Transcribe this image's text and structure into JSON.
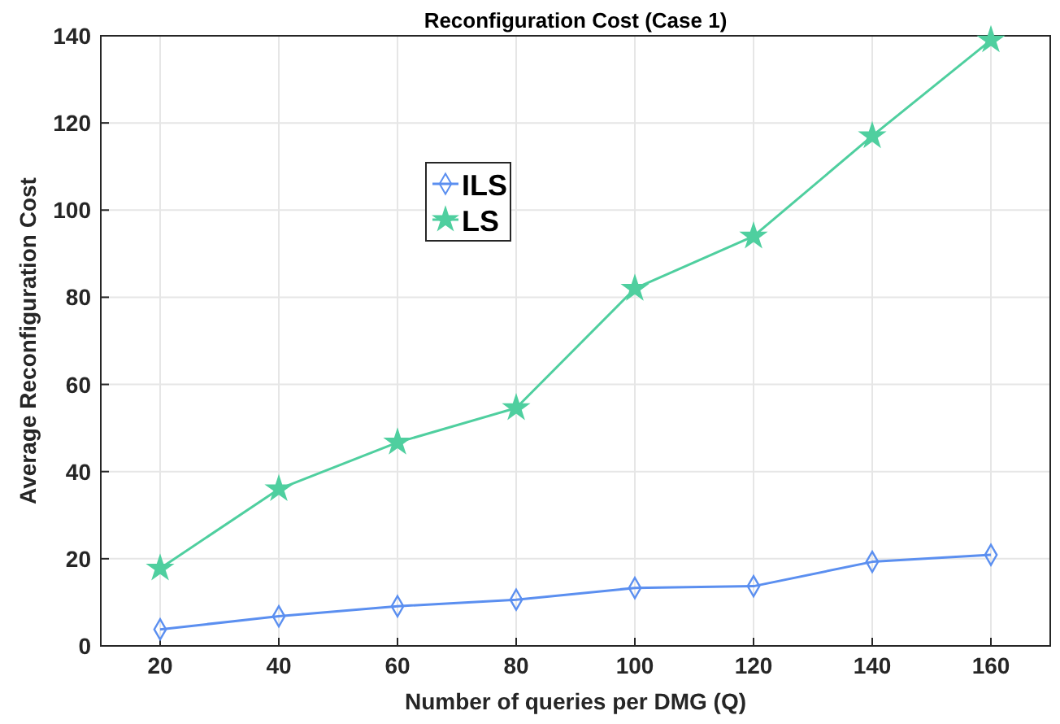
{
  "chart_data": {
    "type": "line",
    "title": "Reconfiguration Cost (Case 1)",
    "xlabel": "Number of queries per DMG (Q)",
    "ylabel": "Average Reconfiguration Cost",
    "x": [
      20,
      40,
      60,
      80,
      100,
      120,
      140,
      160
    ],
    "xlim": [
      10,
      170
    ],
    "xticks": [
      20,
      40,
      60,
      80,
      100,
      120,
      140,
      160
    ],
    "ylim": [
      0,
      140
    ],
    "yticks": [
      0,
      20,
      40,
      60,
      80,
      100,
      120,
      140
    ],
    "grid": true,
    "legend": "top left",
    "series": [
      {
        "name": "ILS",
        "color": "#5b8ff0",
        "marker": "diamond",
        "values": [
          3.8,
          6.8,
          9.1,
          10.6,
          13.3,
          13.7,
          19.3,
          20.9
        ]
      },
      {
        "name": "LS",
        "color": "#4fcf9f",
        "marker": "star",
        "values": [
          17.8,
          36,
          46.7,
          54.6,
          82,
          94,
          117,
          139
        ]
      }
    ]
  }
}
